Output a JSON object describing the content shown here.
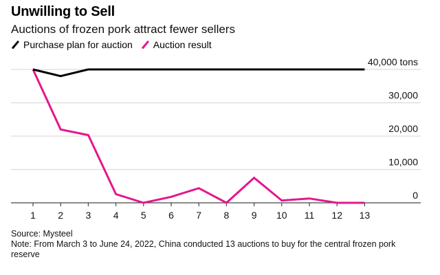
{
  "header": {
    "title": "Unwilling to Sell",
    "subtitle": "Auctions of frozen pork attract fewer sellers"
  },
  "legend": [
    {
      "label": "Purchase plan for auction",
      "color": "#000000"
    },
    {
      "label": "Auction result",
      "color": "#e5158e"
    }
  ],
  "footer": {
    "source": "Source: Mysteel",
    "note": "Note: From March 3 to June 24, 2022, China conducted 13 auctions to buy for the central frozen pork reserve"
  },
  "chart_data": {
    "type": "line",
    "title": "Unwilling to Sell",
    "subtitle": "Auctions of frozen pork attract fewer sellers",
    "xlabel": "",
    "ylabel": "tons",
    "x": [
      1,
      2,
      3,
      4,
      5,
      6,
      7,
      8,
      9,
      10,
      11,
      12,
      13
    ],
    "x_tick_labels": [
      "1",
      "2",
      "3",
      "4",
      "5",
      "6",
      "7",
      "8",
      "9",
      "10",
      "11",
      "12",
      "13"
    ],
    "y_ticks": [
      0,
      10000,
      20000,
      30000,
      40000
    ],
    "y_tick_labels": [
      "0",
      "10,000",
      "20,000",
      "30,000",
      "40,000 tons"
    ],
    "ylim": [
      0,
      40000
    ],
    "xlim": [
      0,
      15
    ],
    "grid": true,
    "y_axis_side": "right",
    "legend_position": "top-left",
    "series": [
      {
        "name": "Purchase plan for auction",
        "color": "#000000",
        "values": [
          40000,
          38000,
          40000,
          40000,
          40000,
          40000,
          40000,
          40000,
          40000,
          40000,
          40000,
          40000,
          40000
        ]
      },
      {
        "name": "Auction result",
        "color": "#e5158e",
        "values": [
          40000,
          22000,
          20300,
          2600,
          0,
          1800,
          4400,
          0,
          7500,
          700,
          1300,
          0,
          0
        ]
      }
    ]
  }
}
